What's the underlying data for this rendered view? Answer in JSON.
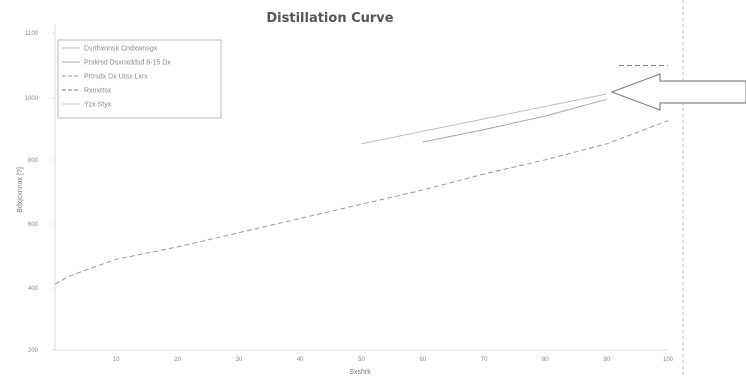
{
  "chart_data": {
    "type": "line",
    "title": "Distillation Curve",
    "xlabel": "Sxshrk",
    "ylabel": "Bdxjcxnnax [?]",
    "x_ticks": [
      "10",
      "20",
      "30",
      "40",
      "50",
      "60",
      "70",
      "80",
      "90",
      "100"
    ],
    "y_ticks": [
      "1100",
      "1000",
      "800",
      "600",
      "400",
      "200"
    ],
    "xlim": [
      0,
      100
    ],
    "ylim": [
      200,
      1100
    ],
    "legend_position": "top-left",
    "grid": false,
    "series": [
      {
        "name": "Dsrthxnnsk Cndxwnsgx",
        "style": "solid",
        "color": "#bdbdbd",
        "x": [
          50,
          60,
          70,
          80,
          90
        ],
        "y": [
          780,
          815,
          850,
          885,
          920
        ]
      },
      {
        "name": "Prxkrsd Dsxnxddsd 8-15 Dx",
        "style": "solid",
        "color": "#a8a8a8",
        "x": [
          60,
          70,
          80,
          90
        ],
        "y": [
          785,
          820,
          858,
          905
        ]
      },
      {
        "name": "Prtrsdx Dx Utsx Lxrx",
        "style": "dashed",
        "color": "#9a9a9a",
        "x": [
          0,
          2,
          5,
          10,
          20,
          30,
          40,
          50,
          60,
          70,
          80,
          90,
          100
        ],
        "y": [
          385,
          405,
          425,
          455,
          490,
          530,
          570,
          610,
          650,
          695,
          735,
          780,
          845
        ]
      },
      {
        "name": "Rxnxrtsx",
        "style": "dashed",
        "color": "#777777",
        "x": [
          92,
          100
        ],
        "y": [
          1000,
          1000
        ]
      },
      {
        "name": "Yzx Styx",
        "style": "solid",
        "color": "#cccccc",
        "x": [],
        "y": []
      }
    ]
  }
}
